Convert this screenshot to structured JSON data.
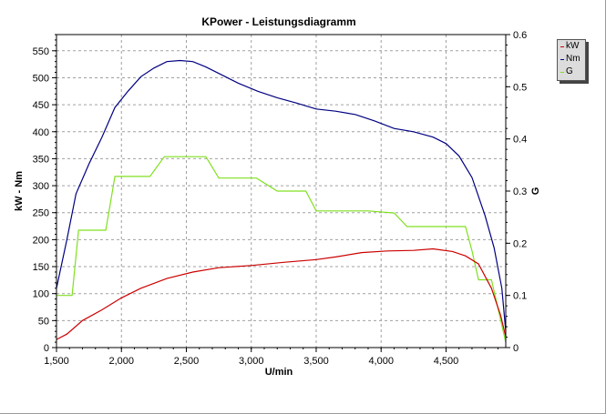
{
  "colors": {
    "kw": "#cc0000",
    "nm": "#000080",
    "g": "#80e020",
    "grid": "#a0a0a0",
    "axis": "#000000"
  },
  "chart_data": {
    "type": "line",
    "title": "KPower - Leistungsdiagramm",
    "xlabel": "U/min",
    "ylabel": "kW - Nm",
    "y2label": "G",
    "xlim": [
      1500,
      4960
    ],
    "ylim": [
      0,
      580
    ],
    "y2lim": [
      0,
      0.6
    ],
    "xticks": [
      1500,
      2000,
      2500,
      3000,
      3500,
      4000,
      4500
    ],
    "xtick_labels": [
      "1,500",
      "2,000",
      "2,500",
      "3,000",
      "3,500",
      "4,000",
      "4,500"
    ],
    "yticks": [
      0,
      50,
      100,
      150,
      200,
      250,
      300,
      350,
      400,
      450,
      500,
      550
    ],
    "y2ticks": [
      0,
      0.1,
      0.2,
      0.3,
      0.4,
      0.5,
      0.6
    ],
    "grid": true,
    "legend": "right",
    "series": [
      {
        "name": "kW",
        "axis": "left",
        "color_key": "kw",
        "x": [
          1500,
          1580,
          1700,
          1850,
          2000,
          2150,
          2350,
          2550,
          2750,
          3000,
          3250,
          3500,
          3650,
          3850,
          4050,
          4250,
          4400,
          4550,
          4650,
          4750,
          4850,
          4920,
          4960
        ],
        "y": [
          15,
          25,
          50,
          70,
          92,
          110,
          128,
          140,
          148,
          152,
          158,
          163,
          168,
          176,
          179,
          180,
          183,
          178,
          170,
          155,
          110,
          60,
          20
        ]
      },
      {
        "name": "Nm",
        "axis": "left",
        "color_key": "nm",
        "x": [
          1500,
          1580,
          1650,
          1750,
          1850,
          1950,
          2050,
          2150,
          2250,
          2350,
          2450,
          2550,
          2650,
          2750,
          2900,
          3050,
          3200,
          3350,
          3500,
          3650,
          3800,
          3950,
          4100,
          4250,
          4400,
          4500,
          4600,
          4700,
          4800,
          4870,
          4930,
          4960
        ],
        "y": [
          110,
          200,
          285,
          340,
          390,
          445,
          475,
          502,
          518,
          530,
          532,
          530,
          520,
          508,
          490,
          475,
          463,
          453,
          442,
          438,
          432,
          420,
          406,
          400,
          390,
          378,
          355,
          315,
          245,
          185,
          110,
          30
        ]
      },
      {
        "name": "G",
        "axis": "right",
        "color_key": "g",
        "x": [
          1500,
          1620,
          1670,
          1880,
          1950,
          2220,
          2330,
          2650,
          2750,
          3040,
          3200,
          3420,
          3500,
          3900,
          4100,
          4200,
          4650,
          4700,
          4750,
          4850,
          4960
        ],
        "y": [
          0.1,
          0.1,
          0.225,
          0.225,
          0.328,
          0.328,
          0.366,
          0.366,
          0.325,
          0.325,
          0.3,
          0.3,
          0.262,
          0.262,
          0.258,
          0.232,
          0.232,
          0.185,
          0.13,
          0.13,
          0.01
        ]
      }
    ]
  }
}
